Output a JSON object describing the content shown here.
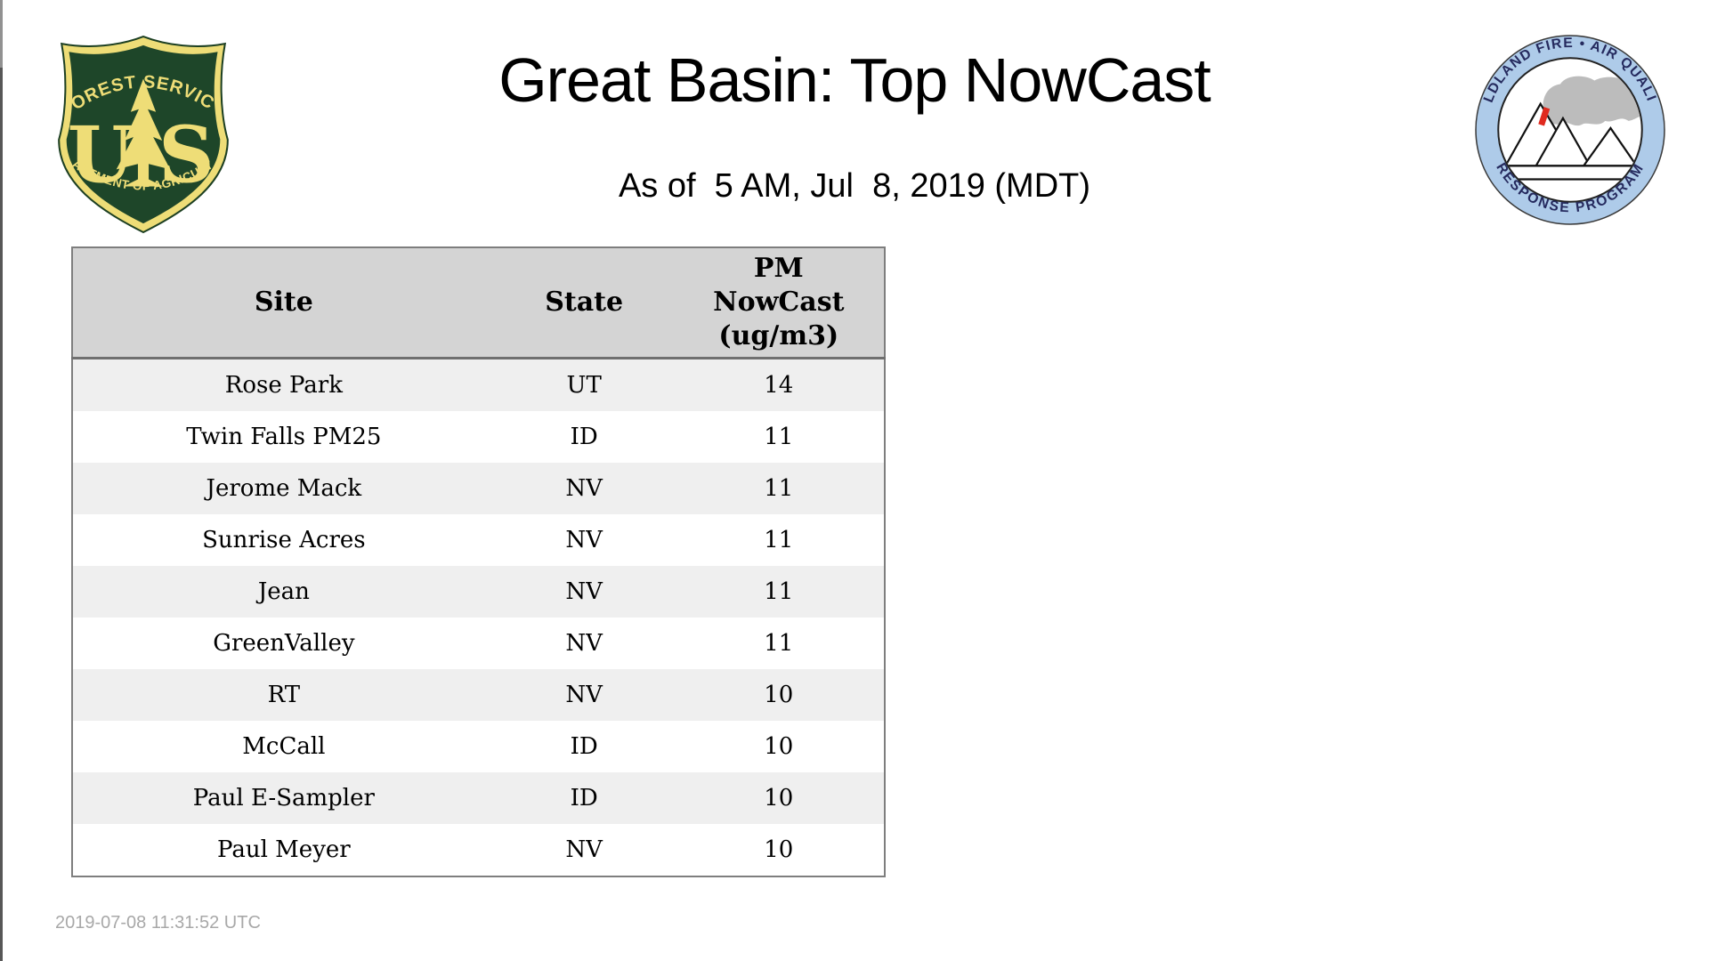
{
  "page": {
    "title": "Great Basin: Top NowCast",
    "subtitle": "As of  5 AM, Jul  8, 2019 (MDT)"
  },
  "logos": {
    "forest_service": {
      "top_text": "FOREST SERVICE",
      "left_letter": "U",
      "right_letter": "S",
      "bottom_text": "DEPARTMENT OF AGRICULTURE"
    },
    "air_quality_program": {
      "top_text": "WILDLAND FIRE • AIR QUALITY",
      "bottom_text": "RESPONSE PROGRAM"
    }
  },
  "table": {
    "header": {
      "site": "Site",
      "state": "State",
      "value_lines": [
        "PM",
        "NowCast",
        "(ug/m3)"
      ]
    },
    "rows": [
      {
        "site": "Rose Park",
        "state": "UT",
        "value": "14"
      },
      {
        "site": "Twin Falls PM25",
        "state": "ID",
        "value": "11"
      },
      {
        "site": "Jerome Mack",
        "state": "NV",
        "value": "11"
      },
      {
        "site": "Sunrise Acres",
        "state": "NV",
        "value": "11"
      },
      {
        "site": "Jean",
        "state": "NV",
        "value": "11"
      },
      {
        "site": "GreenValley",
        "state": "NV",
        "value": "11"
      },
      {
        "site": "RT",
        "state": "NV",
        "value": "10"
      },
      {
        "site": "McCall",
        "state": "ID",
        "value": "10"
      },
      {
        "site": "Paul E-Sampler",
        "state": "ID",
        "value": "10"
      },
      {
        "site": "Paul Meyer",
        "state": "NV",
        "value": "10"
      }
    ]
  },
  "footer": {
    "timestamp": "2019-07-08 11:31:52 UTC"
  },
  "colors": {
    "table_header_bg": "#d4d4d4",
    "table_row_alt_bg": "#efefef",
    "table_border": "#7e7e7e",
    "fs_green": "#1e4629",
    "fs_gold": "#eedd77",
    "aq_ring_blue": "#aecbe9",
    "aq_text_navy": "#252a5e",
    "smoke_gray": "#bcbcbc",
    "fire_red": "#e02a1f",
    "timestamp_gray": "#a8a8a8"
  }
}
